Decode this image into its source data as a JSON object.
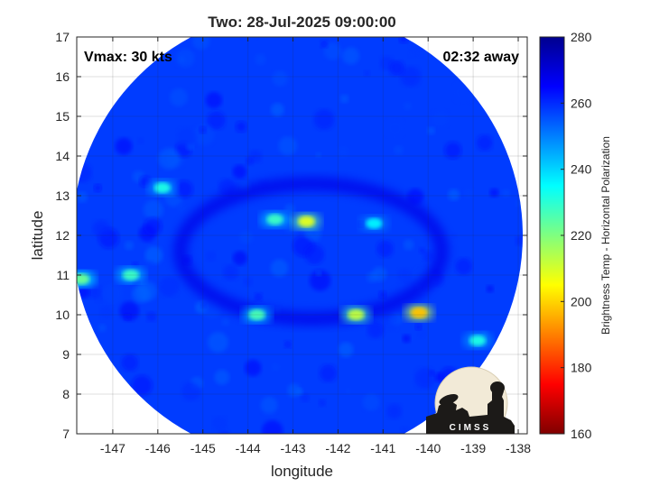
{
  "title": "Two: 28-Jul-2025 09:00:00",
  "annotations": {
    "vmax": "Vmax: 30 kts",
    "time_away": "02:32 away"
  },
  "logo": {
    "text": "CIMSS"
  },
  "chart_data": {
    "type": "heatmap",
    "title": "Two: 28-Jul-2025 09:00:00",
    "xlabel": "longitude",
    "ylabel": "latitude",
    "xlim": [
      -147.8,
      -137.8
    ],
    "ylim": [
      7,
      17
    ],
    "xticks": [
      -147,
      -146,
      -145,
      -144,
      -143,
      -142,
      -141,
      -140,
      -139,
      -138
    ],
    "yticks": [
      7,
      8,
      9,
      10,
      11,
      12,
      13,
      14,
      15,
      16,
      17
    ],
    "grid": true,
    "swath": {
      "shape": "circle",
      "center": [
        -142.9,
        12.0
      ],
      "radius_deg": 5.0
    },
    "colorbar": {
      "label": "Brightness Temp - Horizontal Polarization",
      "range": [
        160,
        280
      ],
      "ticks": [
        160,
        180,
        200,
        220,
        240,
        260,
        280
      ],
      "colormap": "jet"
    },
    "background_value": 258,
    "features": [
      {
        "name": "convective core",
        "lon": -142.7,
        "lat": 12.35,
        "value": 208
      },
      {
        "name": "inner band",
        "lon": -143.4,
        "lat": 12.4,
        "value": 228
      },
      {
        "name": "eastern cluster",
        "lon": -140.2,
        "lat": 10.05,
        "value": 198
      },
      {
        "name": "southern band",
        "lon": -141.6,
        "lat": 10.0,
        "value": 212
      },
      {
        "name": "southern band west",
        "lon": -143.8,
        "lat": 10.0,
        "value": 226
      },
      {
        "name": "western band",
        "lon": -147.7,
        "lat": 10.9,
        "value": 222
      },
      {
        "name": "western band 2",
        "lon": -146.6,
        "lat": 11.0,
        "value": 228
      },
      {
        "name": "northwest band",
        "lon": -145.9,
        "lat": 13.2,
        "value": 232
      },
      {
        "name": "southeast spot",
        "lon": -138.9,
        "lat": 9.35,
        "value": 232
      },
      {
        "name": "east band",
        "lon": -141.2,
        "lat": 12.3,
        "value": 236
      }
    ]
  }
}
